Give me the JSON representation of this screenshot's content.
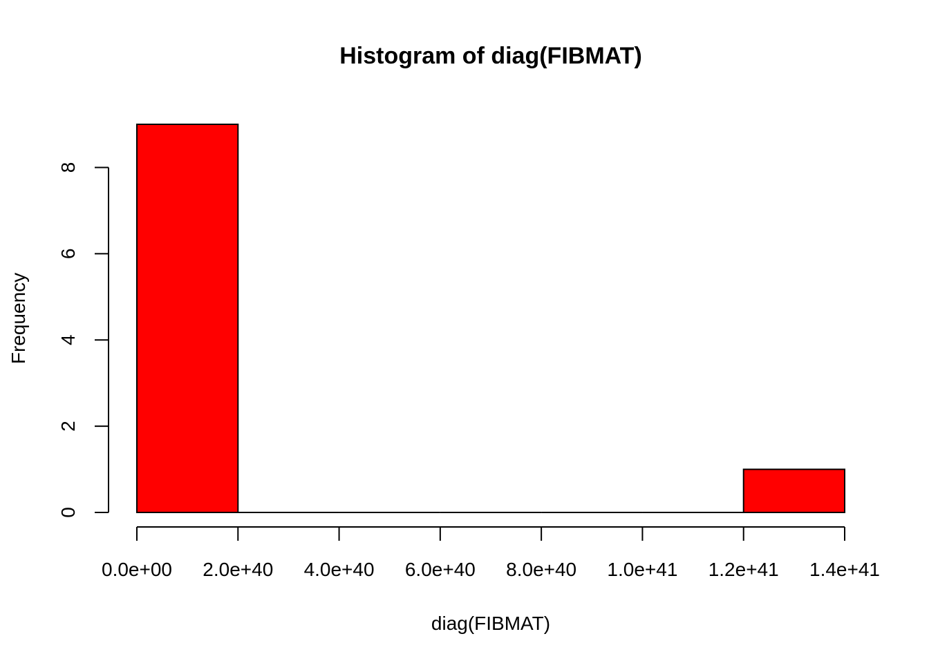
{
  "chart_data": {
    "type": "bar",
    "title": "Histogram of diag(FIBMAT)",
    "xlabel": "diag(FIBMAT)",
    "ylabel": "Frequency",
    "bins": [
      {
        "from": 0,
        "to": 2e+40,
        "count": 9
      },
      {
        "from": 2e+40,
        "to": 4e+40,
        "count": 0
      },
      {
        "from": 4e+40,
        "to": 6e+40,
        "count": 0
      },
      {
        "from": 6e+40,
        "to": 8e+40,
        "count": 0
      },
      {
        "from": 8e+40,
        "to": 1e+41,
        "count": 0
      },
      {
        "from": 1e+41,
        "to": 1.2e+41,
        "count": 0
      },
      {
        "from": 1.2e+41,
        "to": 1.4e+41,
        "count": 1
      }
    ],
    "xlim": [
      0,
      1.4e+41
    ],
    "ylim": [
      0,
      9
    ],
    "x_ticks": [
      {
        "value": 0,
        "label": "0.0e+00"
      },
      {
        "value": 2e+40,
        "label": "2.0e+40"
      },
      {
        "value": 4e+40,
        "label": "4.0e+40"
      },
      {
        "value": 6e+40,
        "label": "6.0e+40"
      },
      {
        "value": 8e+40,
        "label": "8.0e+40"
      },
      {
        "value": 1e+41,
        "label": "1.0e+41"
      },
      {
        "value": 1.2e+41,
        "label": "1.2e+41"
      },
      {
        "value": 1.4e+41,
        "label": "1.4e+41"
      }
    ],
    "y_ticks": [
      {
        "value": 0,
        "label": "0"
      },
      {
        "value": 2,
        "label": "2"
      },
      {
        "value": 4,
        "label": "4"
      },
      {
        "value": 6,
        "label": "6"
      },
      {
        "value": 8,
        "label": "8"
      }
    ],
    "bar_color": "#ff0000",
    "grid": false,
    "legend": false
  }
}
